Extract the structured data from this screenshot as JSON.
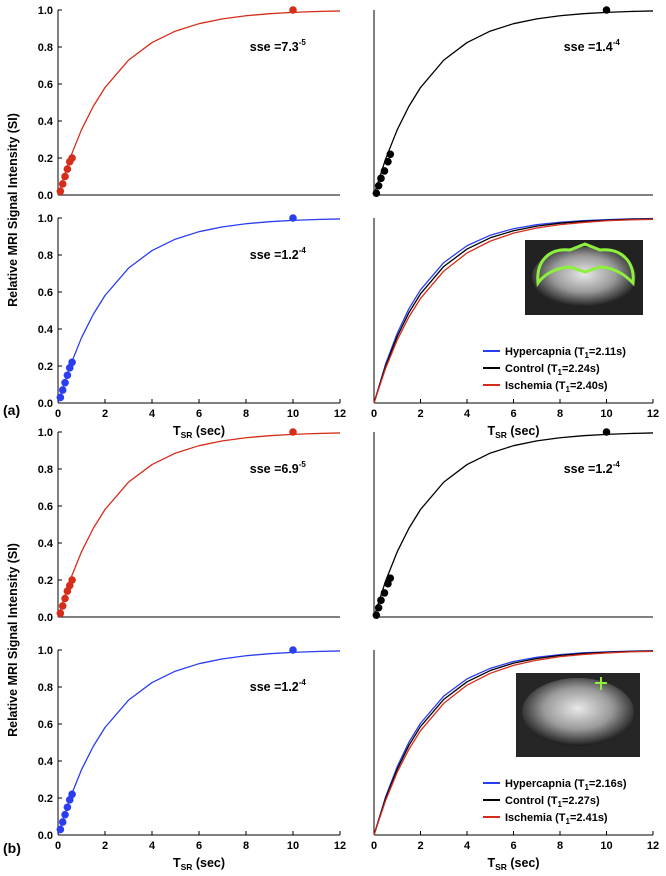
{
  "panels": [
    {
      "label": "(a)",
      "y_label": "Relative MRI Signal Intensity (SI)"
    },
    {
      "label": "(b)",
      "y_label": "Relative MRI Signal Intensity (SI)"
    }
  ],
  "chart_data": [
    {
      "type": "line",
      "xlim": [
        0,
        12
      ],
      "ylim": [
        0,
        1
      ],
      "yticks": [
        {
          "value": 0,
          "label": "0.0"
        },
        {
          "value": 0.2,
          "label": "0.2"
        },
        {
          "value": 0.4,
          "label": "0.4"
        },
        {
          "value": 0.6,
          "label": "0.6"
        },
        {
          "value": 0.8,
          "label": "0.8"
        },
        {
          "value": 1,
          "label": "1.0"
        }
      ],
      "annotation": {
        "text": "sse =7.3",
        "sup": "-5"
      },
      "series": [
        {
          "color": "#d62d1a",
          "x": [
            0,
            0.5,
            1,
            1.5,
            2,
            3,
            4,
            5,
            6,
            7,
            8,
            9,
            10,
            11,
            12
          ],
          "values": [
            0,
            0.195,
            0.353,
            0.479,
            0.581,
            0.729,
            0.824,
            0.886,
            0.926,
            0.952,
            0.969,
            0.98,
            0.987,
            0.992,
            0.995
          ]
        },
        {
          "color": "#d62d1a",
          "marker": true,
          "x": [
            0.1,
            0.2,
            0.3,
            0.4,
            0.5,
            0.6,
            10
          ],
          "values": [
            0.02,
            0.06,
            0.1,
            0.14,
            0.18,
            0.2,
            1.0
          ]
        }
      ]
    },
    {
      "type": "line",
      "xlim": [
        0,
        12
      ],
      "ylim": [
        0,
        1
      ],
      "annotation": {
        "text": "sse =1.4",
        "sup": "-4"
      },
      "series": [
        {
          "color": "#000000",
          "x": [
            0,
            0.5,
            1,
            1.5,
            2,
            3,
            4,
            5,
            6,
            7,
            8,
            9,
            10,
            11,
            12
          ],
          "values": [
            0,
            0.195,
            0.353,
            0.479,
            0.581,
            0.729,
            0.824,
            0.886,
            0.926,
            0.952,
            0.969,
            0.98,
            0.987,
            0.992,
            0.995
          ]
        },
        {
          "color": "#000000",
          "marker": true,
          "x": [
            0.1,
            0.2,
            0.3,
            0.45,
            0.6,
            0.7,
            10
          ],
          "values": [
            0.01,
            0.05,
            0.09,
            0.13,
            0.18,
            0.22,
            1.0
          ]
        }
      ]
    },
    {
      "type": "line",
      "xlim": [
        0,
        12
      ],
      "ylim": [
        0,
        1
      ],
      "yticks": [
        {
          "value": 0,
          "label": "0.0"
        },
        {
          "value": 0.2,
          "label": "0.2"
        },
        {
          "value": 0.4,
          "label": "0.4"
        },
        {
          "value": 0.6,
          "label": "0.6"
        },
        {
          "value": 0.8,
          "label": "0.8"
        },
        {
          "value": 1,
          "label": "1.0"
        }
      ],
      "xticks": [
        0,
        2,
        4,
        6,
        8,
        10,
        12
      ],
      "x_label": {
        "text": "T",
        "sub": "SR",
        "end": " (sec)"
      },
      "annotation": {
        "text": "sse =1.2",
        "sup": "-4"
      },
      "series": [
        {
          "color": "#2b3df0",
          "x": [
            0,
            0.5,
            1,
            1.5,
            2,
            3,
            4,
            5,
            6,
            7,
            8,
            9,
            10,
            11,
            12
          ],
          "values": [
            0,
            0.195,
            0.353,
            0.479,
            0.581,
            0.729,
            0.824,
            0.886,
            0.926,
            0.952,
            0.969,
            0.98,
            0.987,
            0.992,
            0.995
          ]
        },
        {
          "color": "#2b3df0",
          "marker": true,
          "x": [
            0.1,
            0.2,
            0.3,
            0.4,
            0.5,
            0.6,
            10
          ],
          "values": [
            0.03,
            0.07,
            0.11,
            0.15,
            0.19,
            0.22,
            1.0
          ]
        }
      ]
    },
    {
      "type": "line",
      "xlim": [
        0,
        12
      ],
      "ylim": [
        0,
        1
      ],
      "xticks": [
        0,
        2,
        4,
        6,
        8,
        10,
        12
      ],
      "x_label": {
        "text": "T",
        "sub": "SR",
        "end": " (sec)"
      },
      "legend": "lower right",
      "series": [
        {
          "name": "Hypercapnia (T",
          "name_sub": "1",
          "name_end": "=2.11s)",
          "color": "#2b3df0",
          "x": [
            0,
            0.5,
            1,
            1.5,
            2,
            3,
            4,
            5,
            6,
            7,
            8,
            9,
            10,
            11,
            12
          ],
          "values": [
            0,
            0.211,
            0.377,
            0.509,
            0.612,
            0.759,
            0.85,
            0.907,
            0.942,
            0.964,
            0.977,
            0.986,
            0.991,
            0.995,
            0.997
          ]
        },
        {
          "name": "Control (T",
          "name_sub": "1",
          "name_end": "=2.24s)",
          "color": "#000000",
          "x": [
            0,
            0.5,
            1,
            1.5,
            2,
            3,
            4,
            5,
            6,
            7,
            8,
            9,
            10,
            11,
            12
          ],
          "values": [
            0,
            0.2,
            0.36,
            0.488,
            0.59,
            0.738,
            0.832,
            0.893,
            0.931,
            0.956,
            0.972,
            0.982,
            0.988,
            0.993,
            0.995
          ]
        },
        {
          "name": "Ischemia (T",
          "name_sub": "1",
          "name_end": "=2.40s)",
          "color": "#d62d1a",
          "x": [
            0,
            0.5,
            1,
            1.5,
            2,
            3,
            4,
            5,
            6,
            7,
            8,
            9,
            10,
            11,
            12
          ],
          "values": [
            0,
            0.188,
            0.341,
            0.465,
            0.565,
            0.713,
            0.811,
            0.875,
            0.918,
            0.946,
            0.964,
            0.976,
            0.985,
            0.99,
            0.993
          ]
        }
      ]
    },
    {
      "type": "line",
      "xlim": [
        0,
        12
      ],
      "ylim": [
        0,
        1
      ],
      "yticks": [
        {
          "value": 0,
          "label": "0.0"
        },
        {
          "value": 0.2,
          "label": "0.2"
        },
        {
          "value": 0.4,
          "label": "0.4"
        },
        {
          "value": 0.6,
          "label": "0.6"
        },
        {
          "value": 0.8,
          "label": "0.8"
        },
        {
          "value": 1,
          "label": "1.0"
        }
      ],
      "annotation": {
        "text": "sse =6.9",
        "sup": "-5"
      },
      "series": [
        {
          "color": "#d62d1a",
          "x": [
            0,
            0.5,
            1,
            1.5,
            2,
            3,
            4,
            5,
            6,
            7,
            8,
            9,
            10,
            11,
            12
          ],
          "values": [
            0,
            0.195,
            0.353,
            0.479,
            0.581,
            0.729,
            0.824,
            0.886,
            0.926,
            0.952,
            0.969,
            0.98,
            0.987,
            0.992,
            0.995
          ]
        },
        {
          "color": "#d62d1a",
          "marker": true,
          "x": [
            0.1,
            0.2,
            0.3,
            0.4,
            0.5,
            0.6,
            10
          ],
          "values": [
            0.02,
            0.06,
            0.1,
            0.14,
            0.17,
            0.2,
            1.0
          ]
        }
      ]
    },
    {
      "type": "line",
      "xlim": [
        0,
        12
      ],
      "ylim": [
        0,
        1
      ],
      "annotation": {
        "text": "sse =1.2",
        "sup": "-4"
      },
      "series": [
        {
          "color": "#000000",
          "x": [
            0,
            0.5,
            1,
            1.5,
            2,
            3,
            4,
            5,
            6,
            7,
            8,
            9,
            10,
            11,
            12
          ],
          "values": [
            0,
            0.195,
            0.353,
            0.479,
            0.581,
            0.729,
            0.824,
            0.886,
            0.926,
            0.952,
            0.969,
            0.98,
            0.987,
            0.992,
            0.995
          ]
        },
        {
          "color": "#000000",
          "marker": true,
          "x": [
            0.1,
            0.2,
            0.3,
            0.45,
            0.6,
            0.7,
            10
          ],
          "values": [
            0.01,
            0.05,
            0.09,
            0.13,
            0.18,
            0.21,
            1.0
          ]
        }
      ]
    },
    {
      "type": "line",
      "xlim": [
        0,
        12
      ],
      "ylim": [
        0,
        1
      ],
      "yticks": [
        {
          "value": 0,
          "label": "0.0"
        },
        {
          "value": 0.2,
          "label": "0.2"
        },
        {
          "value": 0.4,
          "label": "0.4"
        },
        {
          "value": 0.6,
          "label": "0.6"
        },
        {
          "value": 0.8,
          "label": "0.8"
        },
        {
          "value": 1,
          "label": "1.0"
        }
      ],
      "xticks": [
        0,
        2,
        4,
        6,
        8,
        10,
        12
      ],
      "x_label": {
        "text": "T",
        "sub": "SR",
        "end": " (sec)"
      },
      "annotation": {
        "text": "sse =1.2",
        "sup": "-4"
      },
      "series": [
        {
          "color": "#2b3df0",
          "x": [
            0,
            0.5,
            1,
            1.5,
            2,
            3,
            4,
            5,
            6,
            7,
            8,
            9,
            10,
            11,
            12
          ],
          "values": [
            0,
            0.195,
            0.353,
            0.479,
            0.581,
            0.729,
            0.824,
            0.886,
            0.926,
            0.952,
            0.969,
            0.98,
            0.987,
            0.992,
            0.995
          ]
        },
        {
          "color": "#2b3df0",
          "marker": true,
          "x": [
            0.1,
            0.2,
            0.3,
            0.4,
            0.5,
            0.6,
            10
          ],
          "values": [
            0.03,
            0.07,
            0.11,
            0.15,
            0.19,
            0.22,
            1.0
          ]
        }
      ]
    },
    {
      "type": "line",
      "xlim": [
        0,
        12
      ],
      "ylim": [
        0,
        1
      ],
      "xticks": [
        0,
        2,
        4,
        6,
        8,
        10,
        12
      ],
      "x_label": {
        "text": "T",
        "sub": "SR",
        "end": " (sec)"
      },
      "legend": "lower right",
      "series": [
        {
          "name": "Hypercapnia (T",
          "name_sub": "1",
          "name_end": "=2.16s)",
          "color": "#2b3df0",
          "x": [
            0,
            0.5,
            1,
            1.5,
            2,
            3,
            4,
            5,
            6,
            7,
            8,
            9,
            10,
            11,
            12
          ],
          "values": [
            0,
            0.207,
            0.37,
            0.501,
            0.604,
            0.751,
            0.844,
            0.901,
            0.938,
            0.961,
            0.975,
            0.985,
            0.99,
            0.994,
            0.996
          ]
        },
        {
          "name": "Control (T",
          "name_sub": "1",
          "name_end": "=2.27s)",
          "color": "#000000",
          "x": [
            0,
            0.5,
            1,
            1.5,
            2,
            3,
            4,
            5,
            6,
            7,
            8,
            9,
            10,
            11,
            12
          ],
          "values": [
            0,
            0.198,
            0.356,
            0.484,
            0.586,
            0.733,
            0.828,
            0.889,
            0.929,
            0.954,
            0.971,
            0.981,
            0.988,
            0.992,
            0.995
          ]
        },
        {
          "name": "Ischemia (T",
          "name_sub": "1",
          "name_end": "=2.41s)",
          "color": "#d62d1a",
          "x": [
            0,
            0.5,
            1,
            1.5,
            2,
            3,
            4,
            5,
            6,
            7,
            8,
            9,
            10,
            11,
            12
          ],
          "values": [
            0,
            0.187,
            0.34,
            0.463,
            0.564,
            0.712,
            0.81,
            0.874,
            0.917,
            0.945,
            0.964,
            0.976,
            0.984,
            0.99,
            0.993
          ]
        }
      ]
    }
  ]
}
